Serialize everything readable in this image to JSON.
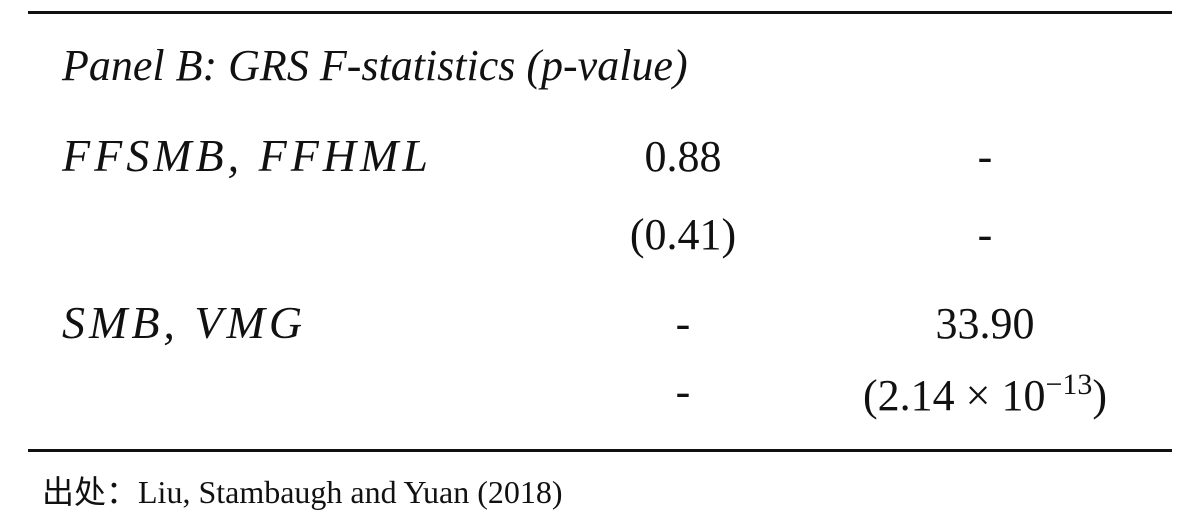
{
  "table": {
    "panel_title": "Panel B: GRS F-statistics (p-value)",
    "rows": [
      {
        "label": "FFSMB, FFHML",
        "cells": [
          "0.88",
          "-"
        ]
      },
      {
        "cells": [
          "(0.41)",
          "-"
        ]
      },
      {
        "label": "SMB, VMG",
        "cells": [
          "-",
          "33.90"
        ]
      },
      {
        "cells": [
          "-",
          {
            "base": "(2.14 × 10",
            "exponent": "−13",
            "close": ")"
          }
        ]
      }
    ]
  },
  "source": "出处：Liu, Stambaugh and Yuan (2018)"
}
